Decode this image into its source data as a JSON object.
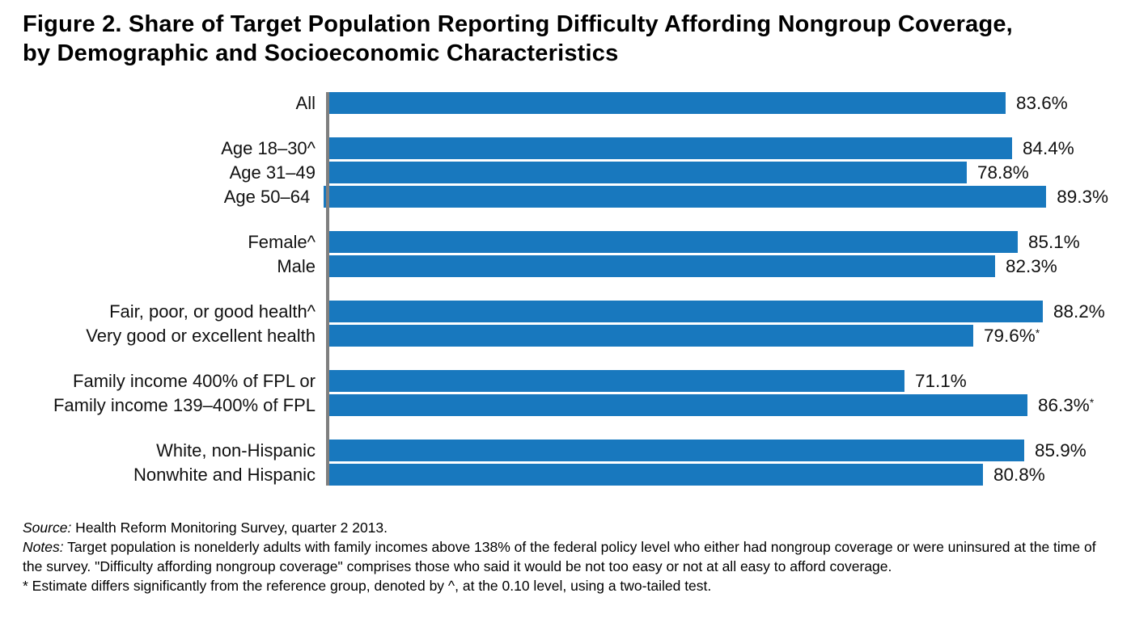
{
  "title": "Figure 2. Share of Target Population Reporting Difficulty Affording Nongroup Coverage, by Demographic and Socioeconomic Characteristics",
  "chart_data": {
    "type": "bar",
    "orientation": "horizontal",
    "title": "Figure 2. Share of Target Population Reporting Difficulty Affording Nongroup Coverage, by Demographic and Socioeconomic Characteristics",
    "xlabel": "",
    "ylabel": "",
    "xlim": [
      0,
      100
    ],
    "unit": "%",
    "grid": false,
    "legend": "none",
    "bar_color": "#1878be",
    "axis_color": "#7f7f7f",
    "groups": [
      {
        "rows": [
          {
            "label": "All",
            "value": 83.6,
            "value_label": "83.6%",
            "suffix": ""
          }
        ]
      },
      {
        "rows": [
          {
            "label": "Age 18–30^",
            "value": 84.4,
            "value_label": "84.4%",
            "suffix": ""
          },
          {
            "label": "Age 31–49",
            "value": 78.8,
            "value_label": "78.8%",
            "suffix": ""
          },
          {
            "label": "Age 50–64",
            "value": 89.3,
            "value_label": "89.3%",
            "suffix": ""
          }
        ]
      },
      {
        "rows": [
          {
            "label": "Female^",
            "value": 85.1,
            "value_label": "85.1%",
            "suffix": ""
          },
          {
            "label": "Male",
            "value": 82.3,
            "value_label": "82.3%",
            "suffix": ""
          }
        ]
      },
      {
        "rows": [
          {
            "label": "Fair, poor, or good health^",
            "value": 88.2,
            "value_label": "88.2%",
            "suffix": ""
          },
          {
            "label": "Very good or excellent health",
            "value": 79.6,
            "value_label": "79.6%",
            "suffix": "*"
          }
        ]
      },
      {
        "rows": [
          {
            "label": "Family income 400% of FPL or",
            "value": 71.1,
            "value_label": "71.1%",
            "suffix": ""
          },
          {
            "label": "Family income 139–400% of FPL",
            "value": 86.3,
            "value_label": "86.3%",
            "suffix": "*"
          }
        ]
      },
      {
        "rows": [
          {
            "label": "White, non-Hispanic",
            "value": 85.9,
            "value_label": "85.9%",
            "suffix": ""
          },
          {
            "label": "Nonwhite and Hispanic",
            "value": 80.8,
            "value_label": "80.8%",
            "suffix": ""
          }
        ]
      }
    ]
  },
  "footnotes": {
    "source_label": "Source:",
    "source_text": " Health Reform Monitoring Survey, quarter 2 2013.",
    "notes_label": "Notes:",
    "notes_text": " Target population is nonelderly adults with family incomes above 138% of the federal policy level who either had nongroup coverage or were uninsured at the time of the survey. \"Difficulty affording nongroup coverage\" comprises those who said it would be not too easy or not at all easy to afford coverage.",
    "significance_text": "* Estimate differs significantly from the reference group, denoted by ^, at the 0.10 level, using a two-tailed test."
  }
}
